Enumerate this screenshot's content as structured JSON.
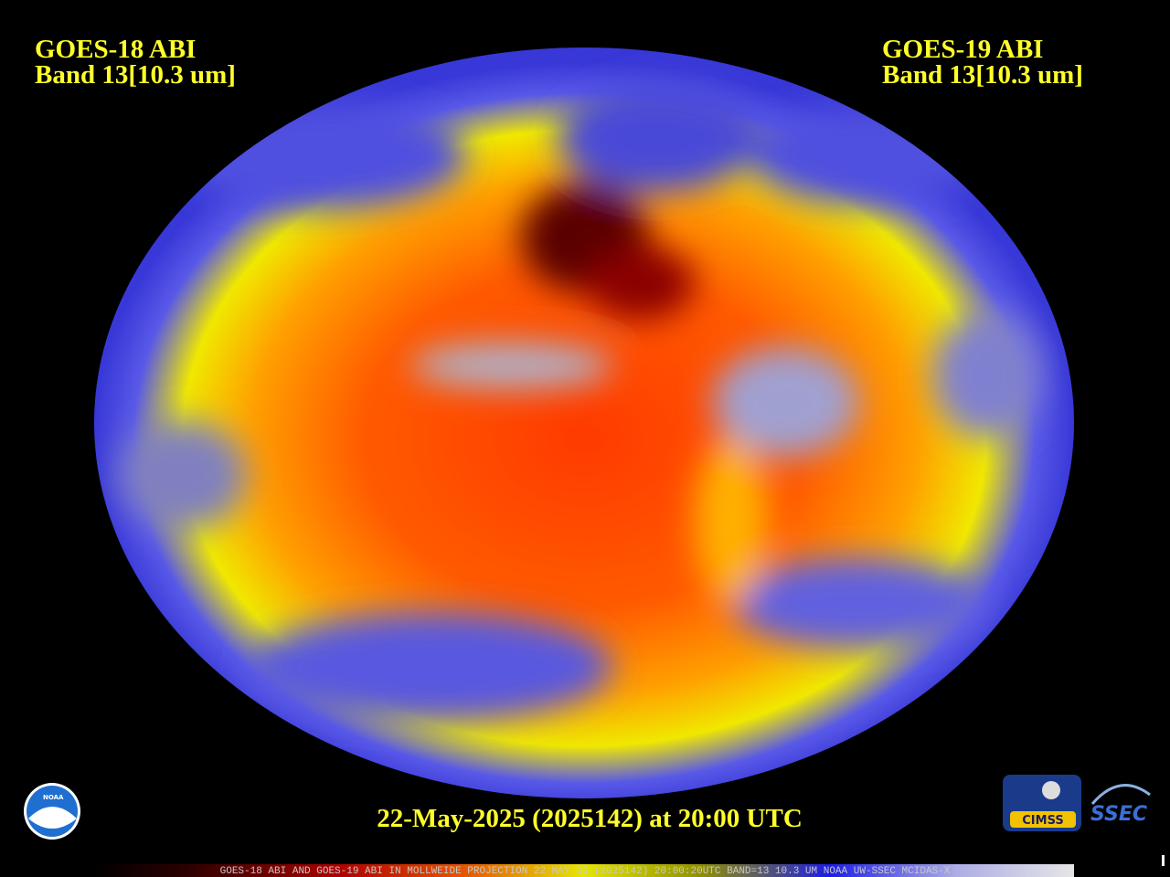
{
  "header": {
    "left": {
      "title": "GOES-18 ABI",
      "band": "Band 13[10.3 um]"
    },
    "right": {
      "title": "GOES-19 ABI",
      "band": "Band 13[10.3 um]"
    }
  },
  "timestamp": "22-May-2025 (2025142) at 20:00 UTC",
  "footer": "GOES-18 ABI AND GOES-19 ABI IN MOLLWEIDE PROJECTION 22 MAY 25 (2025142) 20:00:20UTC BAND=13 10.3 UM NOAA UW-SSEC MCIDAS-X",
  "logos": {
    "noaa": "NOAA",
    "cimss": "CIMSS",
    "ssec": "SSEC"
  }
}
